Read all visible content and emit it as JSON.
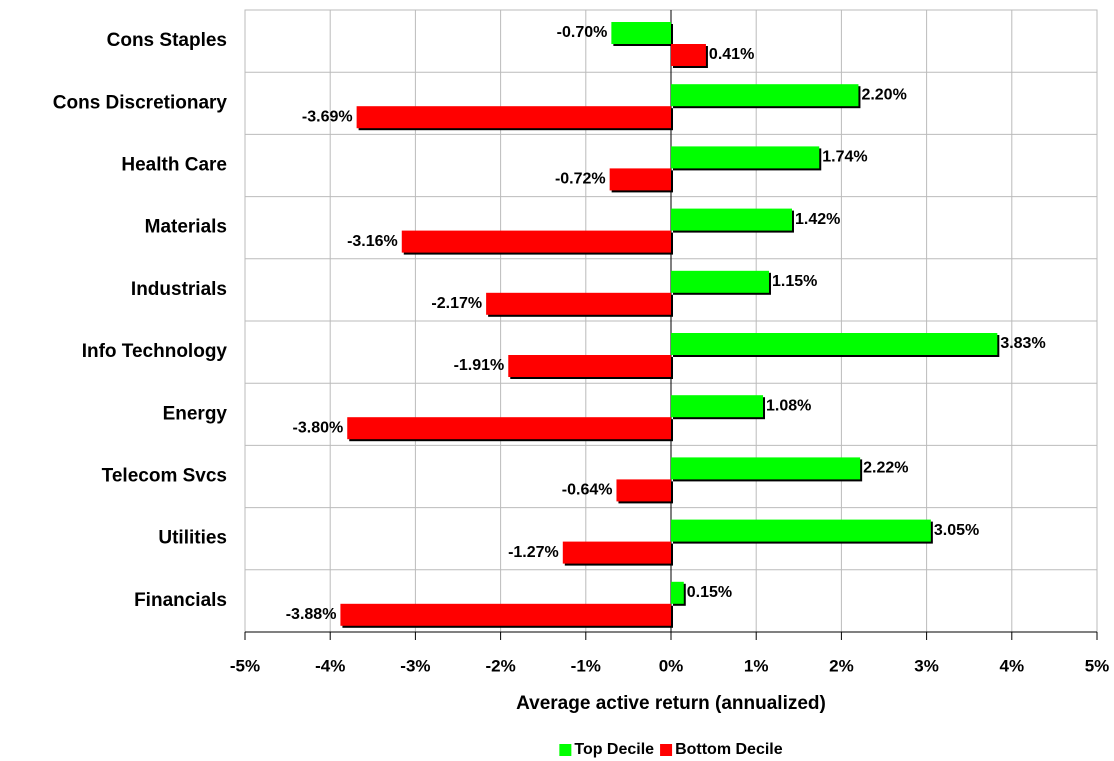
{
  "chart_data": {
    "type": "hbar",
    "x_label": "Average active return (annualized)",
    "categories": [
      "Cons Staples",
      "Cons Discretionary",
      "Health Care",
      "Materials",
      "Industrials",
      "Info Technology",
      "Energy",
      "Telecom Svcs",
      "Utilities",
      "Financials"
    ],
    "series": [
      {
        "name": "Top Decile",
        "color": "#00ff00",
        "values": [
          -0.7,
          2.2,
          1.74,
          1.42,
          1.15,
          3.83,
          1.08,
          2.22,
          3.05,
          0.15
        ],
        "value_labels": [
          "-0.70%",
          "2.20%",
          "1.74%",
          "1.42%",
          "1.15%",
          "3.83%",
          "1.08%",
          "2.22%",
          "3.05%",
          "0.15%"
        ]
      },
      {
        "name": "Bottom Decile",
        "color": "#ff0000",
        "values": [
          0.41,
          -3.69,
          -0.72,
          -3.16,
          -2.17,
          -1.91,
          -3.8,
          -0.64,
          -1.27,
          -3.88
        ],
        "value_labels": [
          "0.41%",
          "-3.69%",
          "-0.72%",
          "-3.16%",
          "-2.17%",
          "-1.91%",
          "-3.80%",
          "-0.64%",
          "-1.27%",
          "-3.88%"
        ]
      }
    ],
    "xlim": [
      -5,
      5
    ],
    "xticks": [
      {
        "value": -5,
        "label": "-5%"
      },
      {
        "value": -4,
        "label": "-4%"
      },
      {
        "value": -3,
        "label": "-3%"
      },
      {
        "value": -2,
        "label": "-2%"
      },
      {
        "value": -1,
        "label": "-1%"
      },
      {
        "value": 0,
        "label": "0%"
      },
      {
        "value": 1,
        "label": "1%"
      },
      {
        "value": 2,
        "label": "2%"
      },
      {
        "value": 3,
        "label": "3%"
      },
      {
        "value": 4,
        "label": "4%"
      },
      {
        "value": 5,
        "label": "5%"
      }
    ],
    "grid": true,
    "legend": "bottom"
  }
}
